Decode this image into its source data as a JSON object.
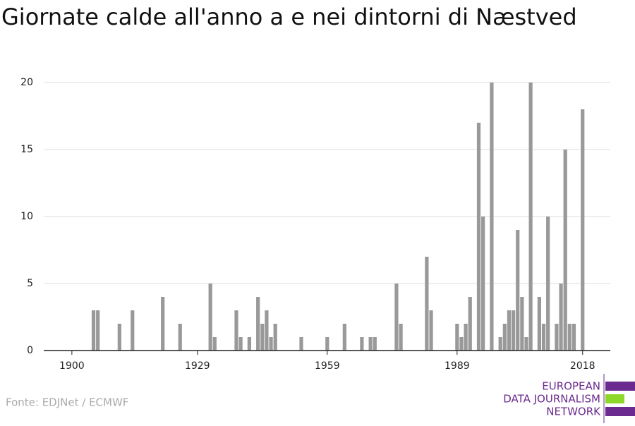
{
  "chart_data": {
    "type": "bar",
    "title": "Giornate calde all'anno a e nei dintorni di Næstved",
    "x": [
      1905,
      1906,
      1911,
      1914,
      1921,
      1925,
      1932,
      1933,
      1938,
      1939,
      1941,
      1943,
      1944,
      1945,
      1946,
      1947,
      1953,
      1959,
      1963,
      1967,
      1969,
      1970,
      1975,
      1976,
      1982,
      1983,
      1989,
      1990,
      1991,
      1992,
      1994,
      1995,
      1997,
      1999,
      2000,
      2001,
      2002,
      2003,
      2004,
      2005,
      2006,
      2008,
      2009,
      2010,
      2012,
      2013,
      2014,
      2015,
      2016,
      2018
    ],
    "values": [
      3,
      3,
      2,
      3,
      4,
      2,
      5,
      1,
      3,
      1,
      1,
      4,
      2,
      3,
      1,
      2,
      1,
      1,
      2,
      1,
      1,
      1,
      5,
      2,
      7,
      3,
      2,
      1,
      2,
      4,
      17,
      10,
      20,
      1,
      2,
      3,
      3,
      9,
      4,
      1,
      20,
      4,
      2,
      10,
      2,
      5,
      15,
      2,
      2,
      18
    ],
    "color": "#999999",
    "xlim": [
      1893.5,
      2024.4
    ],
    "xticks": [
      1900,
      1929,
      1959,
      1989,
      2018
    ],
    "ylim": [
      0,
      20
    ],
    "yticks": [
      0,
      5,
      10,
      15,
      20
    ],
    "grid": true,
    "source": "Fonte: EDJNet / ECMWF"
  },
  "logo": {
    "lines": [
      "EUROPEAN",
      "DATA JOURNALISM",
      "NETWORK"
    ]
  }
}
